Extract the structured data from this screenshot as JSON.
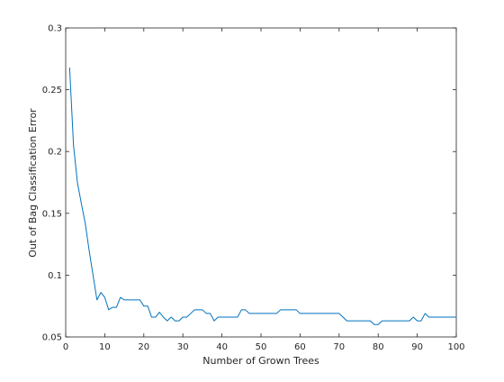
{
  "chart_data": {
    "type": "line",
    "title": "",
    "xlabel": "Number of Grown Trees",
    "ylabel": "Out of Bag Classification Error",
    "xlim": [
      0,
      100
    ],
    "ylim": [
      0.05,
      0.3
    ],
    "x_ticks": [
      0,
      10,
      20,
      30,
      40,
      50,
      60,
      70,
      80,
      90,
      100
    ],
    "x_tick_labels": [
      "0",
      "10",
      "20",
      "30",
      "40",
      "50",
      "60",
      "70",
      "80",
      "90",
      "100"
    ],
    "y_ticks": [
      0.05,
      0.1,
      0.15,
      0.2,
      0.25,
      0.3
    ],
    "y_tick_labels": [
      "0.05",
      "0.1",
      "0.15",
      "0.2",
      "0.25",
      "0.3"
    ],
    "grid": false,
    "box": true,
    "line_color": "#0072BD",
    "series": [
      {
        "name": "",
        "x": [
          1,
          2,
          3,
          4,
          5,
          6,
          7,
          8,
          9,
          10,
          11,
          12,
          13,
          14,
          15,
          16,
          17,
          18,
          19,
          20,
          21,
          22,
          23,
          24,
          25,
          26,
          27,
          28,
          29,
          30,
          31,
          32,
          33,
          34,
          35,
          36,
          37,
          38,
          39,
          40,
          41,
          42,
          43,
          44,
          45,
          46,
          47,
          48,
          49,
          50,
          51,
          52,
          53,
          54,
          55,
          56,
          57,
          58,
          59,
          60,
          61,
          62,
          63,
          64,
          65,
          66,
          67,
          68,
          69,
          70,
          71,
          72,
          73,
          74,
          75,
          76,
          77,
          78,
          79,
          80,
          81,
          82,
          83,
          84,
          85,
          86,
          87,
          88,
          89,
          90,
          91,
          92,
          93,
          94,
          95,
          96,
          97,
          98,
          99,
          100
        ],
        "y": [
          0.268,
          0.205,
          0.175,
          0.158,
          0.142,
          0.12,
          0.1,
          0.08,
          0.086,
          0.082,
          0.072,
          0.074,
          0.074,
          0.082,
          0.08,
          0.08,
          0.08,
          0.08,
          0.08,
          0.075,
          0.075,
          0.066,
          0.066,
          0.07,
          0.066,
          0.063,
          0.066,
          0.063,
          0.063,
          0.066,
          0.066,
          0.069,
          0.072,
          0.072,
          0.072,
          0.069,
          0.069,
          0.063,
          0.066,
          0.066,
          0.066,
          0.066,
          0.066,
          0.066,
          0.072,
          0.072,
          0.069,
          0.069,
          0.069,
          0.069,
          0.069,
          0.069,
          0.069,
          0.069,
          0.072,
          0.072,
          0.072,
          0.072,
          0.072,
          0.069,
          0.069,
          0.069,
          0.069,
          0.069,
          0.069,
          0.069,
          0.069,
          0.069,
          0.069,
          0.069,
          0.066,
          0.063,
          0.063,
          0.063,
          0.063,
          0.063,
          0.063,
          0.063,
          0.06,
          0.06,
          0.063,
          0.063,
          0.063,
          0.063,
          0.063,
          0.063,
          0.063,
          0.063,
          0.066,
          0.063,
          0.063,
          0.069,
          0.066,
          0.066,
          0.066,
          0.066,
          0.066,
          0.066,
          0.066,
          0.066
        ]
      }
    ]
  }
}
